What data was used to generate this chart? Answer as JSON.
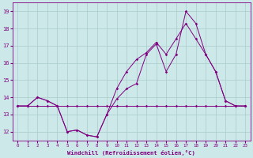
{
  "title": "",
  "xlabel": "Windchill (Refroidissement éolien,°C)",
  "background_color": "#cce8e8",
  "line_color": "#800080",
  "grid_color": "#aacccc",
  "hours": [
    0,
    1,
    2,
    3,
    4,
    5,
    6,
    7,
    8,
    9,
    10,
    11,
    12,
    13,
    14,
    15,
    16,
    17,
    18,
    19,
    20,
    21,
    22,
    23
  ],
  "series1": [
    13.5,
    13.5,
    14.0,
    13.8,
    13.5,
    12.0,
    12.1,
    11.8,
    11.7,
    13.0,
    13.9,
    14.5,
    14.8,
    16.5,
    17.1,
    15.5,
    16.5,
    19.0,
    18.3,
    16.5,
    15.5,
    13.8,
    13.5,
    13.5
  ],
  "series2": [
    13.5,
    13.5,
    14.0,
    13.8,
    13.5,
    12.0,
    12.1,
    11.8,
    11.7,
    13.0,
    14.5,
    15.5,
    16.2,
    16.6,
    17.2,
    16.5,
    17.4,
    18.3,
    17.4,
    16.5,
    15.5,
    13.8,
    13.5,
    13.5
  ],
  "series3": [
    13.5,
    13.5,
    13.5,
    13.5,
    13.5,
    13.5,
    13.5,
    13.5,
    13.5,
    13.5,
    13.5,
    13.5,
    13.5,
    13.5,
    13.5,
    13.5,
    13.5,
    13.5,
    13.5,
    13.5,
    13.5,
    13.5,
    13.5,
    13.5
  ],
  "ylim": [
    11.5,
    19.5
  ],
  "yticks": [
    12,
    13,
    14,
    15,
    16,
    17,
    18,
    19
  ]
}
